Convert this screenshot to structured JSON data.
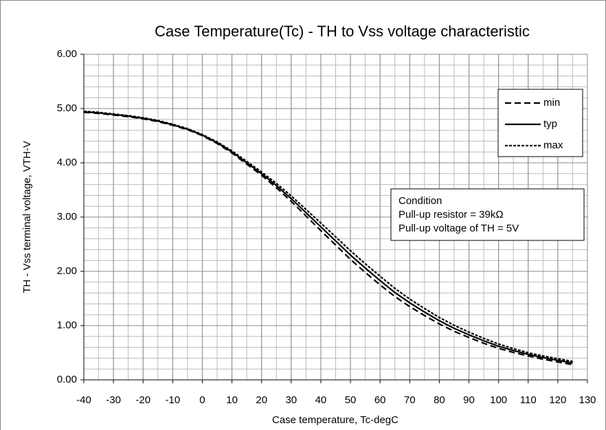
{
  "chart_data": {
    "type": "line",
    "title": "Case Temperature(Tc) - TH to Vss voltage characteristic",
    "xlabel": "Case temperature, Tc-degC",
    "ylabel": "TH - Vss terminal voltage, VTH-V",
    "x": [
      -40,
      -35,
      -30,
      -25,
      -20,
      -15,
      -10,
      -5,
      0,
      5,
      10,
      15,
      20,
      25,
      30,
      35,
      40,
      45,
      50,
      55,
      60,
      65,
      70,
      75,
      80,
      85,
      90,
      95,
      100,
      105,
      110,
      115,
      120,
      125
    ],
    "series": [
      {
        "name": "min",
        "color": "#000000",
        "dash": "9,5",
        "values": [
          4.93,
          4.91,
          4.88,
          4.85,
          4.81,
          4.76,
          4.69,
          4.61,
          4.5,
          4.355,
          4.18,
          3.975,
          3.77,
          3.54,
          3.29,
          3.02,
          2.75,
          2.485,
          2.22,
          1.98,
          1.75,
          1.535,
          1.35,
          1.185,
          1.03,
          0.895,
          0.78,
          0.675,
          0.58,
          0.505,
          0.44,
          0.38,
          0.33,
          0.28
        ]
      },
      {
        "name": "typ",
        "color": "#000000",
        "dash": "none",
        "values": [
          4.94,
          4.92,
          4.89,
          4.86,
          4.82,
          4.77,
          4.7,
          4.62,
          4.51,
          4.37,
          4.2,
          4.0,
          3.8,
          3.58,
          3.34,
          3.08,
          2.82,
          2.56,
          2.3,
          2.06,
          1.83,
          1.61,
          1.42,
          1.25,
          1.09,
          0.95,
          0.83,
          0.72,
          0.62,
          0.54,
          0.47,
          0.41,
          0.36,
          0.31
        ]
      },
      {
        "name": "max",
        "color": "#000000",
        "dash": "4,2",
        "values": [
          4.95,
          4.93,
          4.9,
          4.87,
          4.83,
          4.78,
          4.71,
          4.63,
          4.52,
          4.385,
          4.22,
          4.025,
          3.83,
          3.62,
          3.39,
          3.14,
          2.89,
          2.635,
          2.38,
          2.14,
          1.91,
          1.685,
          1.49,
          1.315,
          1.15,
          1.005,
          0.88,
          0.765,
          0.66,
          0.575,
          0.5,
          0.44,
          0.39,
          0.34
        ]
      }
    ],
    "xlim": [
      -40,
      130
    ],
    "xticks": [
      -40,
      -30,
      -20,
      -10,
      0,
      10,
      20,
      30,
      40,
      50,
      60,
      70,
      80,
      90,
      100,
      110,
      120,
      130
    ],
    "ylim": [
      0,
      6
    ],
    "yticks": [
      {
        "value": 0,
        "label": "0.00"
      },
      {
        "value": 1,
        "label": "1.00"
      },
      {
        "value": 2,
        "label": "2.00"
      },
      {
        "value": 3,
        "label": "3.00"
      },
      {
        "value": 4,
        "label": "4.00"
      },
      {
        "value": 5,
        "label": "5.00"
      },
      {
        "value": 6,
        "label": "6.00"
      }
    ],
    "grid": true,
    "grid_step_x": 5,
    "grid_step_y": 0.2,
    "legend": "upper right",
    "annotation": [
      "Condition",
      "Pull-up resistor = 39kΩ",
      "Pull-up voltage of TH = 5V"
    ]
  }
}
